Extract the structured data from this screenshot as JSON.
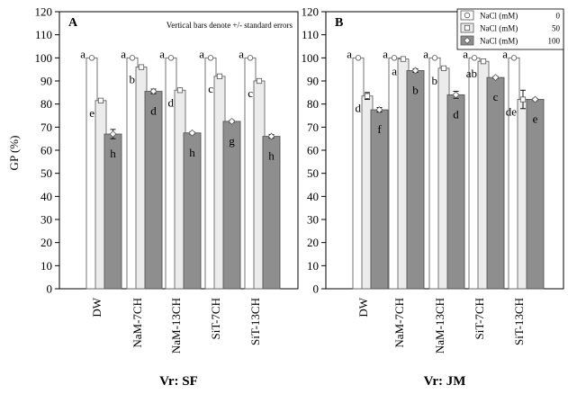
{
  "chart_data": {
    "type": "bar",
    "ylabel": "GP (%)",
    "ylim": [
      0,
      120
    ],
    "yticks": [
      "0",
      "10",
      "20",
      "30",
      "40",
      "50",
      "60",
      "70",
      "80",
      "90",
      "100",
      "110",
      "120"
    ],
    "categories": [
      "DW",
      "NaM-7CH",
      "NaM-13CH",
      "SiT-7CH",
      "SiT-13CH"
    ],
    "note": "Vertical bars denote +/- standard errors",
    "legend": {
      "position": "top-right",
      "entries": [
        {
          "label": "NaCl (mM)",
          "value": "0",
          "marker": "circle"
        },
        {
          "label": "NaCl (mM)",
          "value": "50",
          "marker": "square"
        },
        {
          "label": "NaCl (mM)",
          "value": "100",
          "marker": "diamond"
        }
      ]
    },
    "colors": {
      "s0": "#ffffff",
      "s50": "#ececec",
      "s100": "#8e8e8e",
      "edge": "#666666"
    },
    "panels": [
      {
        "letter": "A",
        "xlabel": "Vr: SF",
        "series": [
          {
            "name": "0",
            "values": [
              100,
              100,
              100,
              100,
              100
            ],
            "errors": [
              0.3,
              0.3,
              0.3,
              0.3,
              0.3
            ],
            "labels": [
              "a",
              "a",
              "a",
              "a",
              "a"
            ]
          },
          {
            "name": "50",
            "values": [
              81.5,
              96,
              86,
              92,
              90
            ],
            "errors": [
              0.6,
              0.6,
              0.6,
              0.6,
              0.6
            ],
            "labels": [
              "e",
              "b",
              "d",
              "c",
              "c"
            ]
          },
          {
            "name": "100",
            "values": [
              67,
              85.5,
              67.5,
              72.5,
              66
            ],
            "errors": [
              2,
              1,
              0.5,
              0.5,
              0.8
            ],
            "labels": [
              "h",
              "d",
              "h",
              "g",
              "h"
            ]
          }
        ]
      },
      {
        "letter": "B",
        "xlabel": "Vr: JM",
        "series": [
          {
            "name": "0",
            "values": [
              100,
              100,
              100,
              100,
              100
            ],
            "errors": [
              0.3,
              0.3,
              0.3,
              0.3,
              0.3
            ],
            "labels": [
              "a",
              "a",
              "a",
              "a",
              "a"
            ]
          },
          {
            "name": "50",
            "values": [
              83.5,
              99.5,
              95.5,
              98.5,
              82
            ],
            "errors": [
              1.5,
              0.5,
              0.6,
              0.5,
              4
            ],
            "labels": [
              "d",
              "a",
              "b",
              "ab",
              "de"
            ]
          },
          {
            "name": "100",
            "values": [
              77.5,
              94.5,
              84,
              91.5,
              82
            ],
            "errors": [
              1,
              0.8,
              1.5,
              0.5,
              0.5
            ],
            "labels": [
              "f",
              "b",
              "d",
              "c",
              "e"
            ]
          }
        ]
      }
    ]
  }
}
